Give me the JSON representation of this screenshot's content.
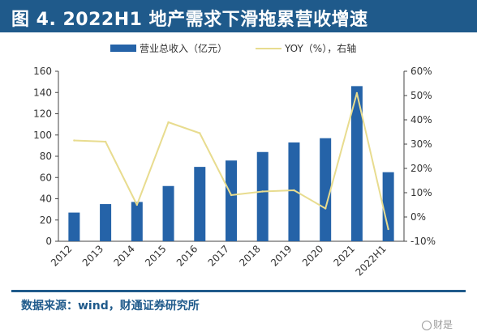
{
  "header": {
    "title": "图 4. 2022H1 地产需求下滑拖累营收增速"
  },
  "chart_data": {
    "type": "bar",
    "categories": [
      "2012",
      "2013",
      "2014",
      "2015",
      "2016",
      "2017",
      "2018",
      "2019",
      "2020",
      "2021",
      "2022H1"
    ],
    "series": [
      {
        "name": "营业总收入（亿元）",
        "type": "bar",
        "axis": "left",
        "color": "#2563a8",
        "values": [
          27,
          35,
          37,
          52,
          70,
          76,
          84,
          93,
          97,
          146,
          65
        ]
      },
      {
        "name": "YOY（%），右轴",
        "type": "line",
        "axis": "right",
        "color": "#e8dc8f",
        "values": [
          31.5,
          31,
          5,
          39,
          34.5,
          9,
          10.5,
          11,
          3.5,
          51,
          -5
        ]
      }
    ],
    "y_left": {
      "min": 0,
      "max": 160,
      "ticks": [
        "0",
        "20",
        "40",
        "60",
        "80",
        "100",
        "120",
        "140",
        "160"
      ]
    },
    "y_right": {
      "min": -10,
      "max": 60,
      "ticks": [
        "-10%",
        "0%",
        "10%",
        "20%",
        "30%",
        "40%",
        "50%",
        "60%"
      ]
    },
    "grid": false,
    "legend_position": "top"
  },
  "footer": {
    "source": "数据来源：wind，财通证券研究所",
    "watermark": "财是"
  }
}
